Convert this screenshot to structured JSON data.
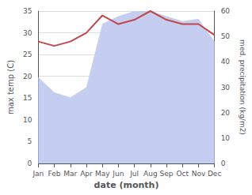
{
  "chart_data": {
    "type": "line",
    "categories": [
      "Jan",
      "Feb",
      "Mar",
      "Apr",
      "May",
      "Jun",
      "Jul",
      "Aug",
      "Sep",
      "Oct",
      "Nov",
      "Dec"
    ],
    "series": [
      {
        "type": "area",
        "axis": "y2",
        "color": "#c5cef0",
        "values": [
          34,
          28,
          26,
          30,
          55,
          58,
          60,
          60,
          58,
          56,
          57,
          48
        ]
      },
      {
        "type": "line",
        "color": "#c0474a",
        "values": [
          28,
          27,
          28,
          30,
          34,
          32,
          33,
          35,
          33,
          32,
          32,
          29.5
        ]
      }
    ],
    "xlabel": "date (month)",
    "ylabel": "max temp (C)",
    "y2label": "med. precipitation (kg/m2)",
    "ylim": [
      0,
      35
    ],
    "yticks": [
      0,
      5,
      10,
      15,
      20,
      25,
      30,
      35
    ],
    "y2lim": [
      0,
      60
    ],
    "y2ticks": [
      0,
      10,
      20,
      30,
      40,
      50,
      60
    ],
    "grid": true
  }
}
